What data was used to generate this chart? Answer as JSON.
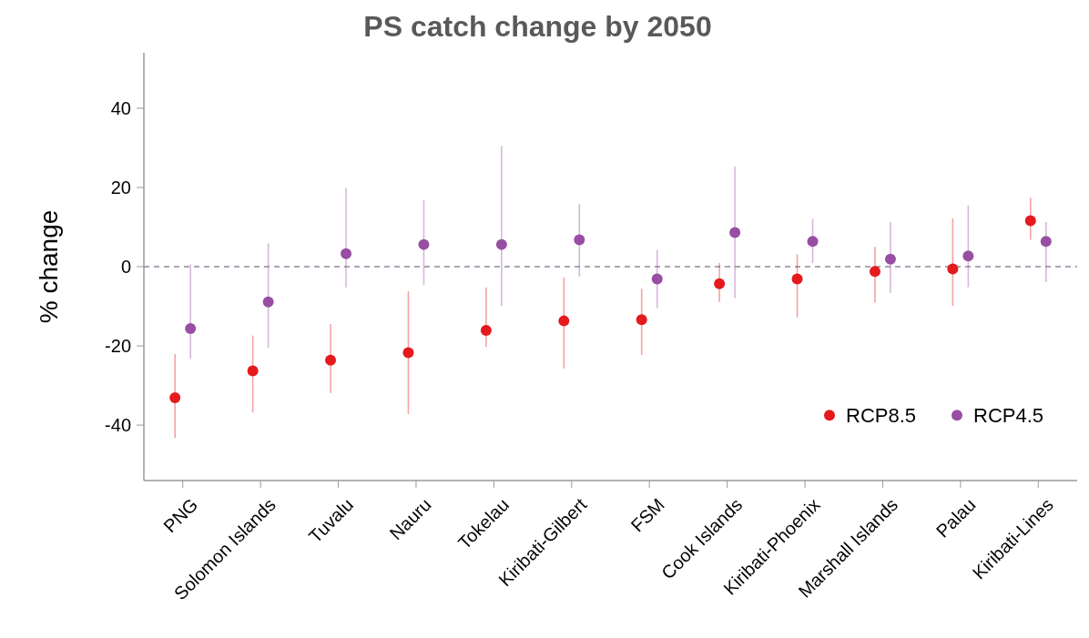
{
  "chart_data": {
    "type": "scatter",
    "title": "PS catch change by 2050",
    "ylabel": "% change",
    "categories": [
      "PNG",
      "Solomon Islands",
      "Tuvalu",
      "Nauru",
      "Tokelau",
      "Kiribati-Gilbert",
      "FSM",
      "Cook Islands",
      "Kiribati-Phoenix",
      "Marshall Islands",
      "Palau",
      "Kiribati-Lines"
    ],
    "series": [
      {
        "name": "RCP8.5",
        "color": "#e41a1c",
        "values": [
          -33.1,
          -26.3,
          -23.6,
          -21.7,
          -16.1,
          -13.7,
          -13.4,
          -4.3,
          -3.1,
          -1.2,
          -0.6,
          11.6
        ],
        "errors": [
          [
            -43.2,
            -22.1
          ],
          [
            -36.8,
            -17.4
          ],
          [
            -31.9,
            -14.5
          ],
          [
            -37.2,
            -6.2
          ],
          [
            -20.3,
            -5.2
          ],
          [
            -25.7,
            -2.7
          ],
          [
            -22.3,
            -5.6
          ],
          [
            -8.9,
            0.9
          ],
          [
            -12.8,
            3.1
          ],
          [
            -9.1,
            5.0
          ],
          [
            -9.9,
            12.2
          ],
          [
            6.8,
            17.4
          ]
        ]
      },
      {
        "name": "RCP4.5",
        "color": "#984ea3",
        "values": [
          -15.6,
          -8.9,
          3.3,
          5.6,
          5.6,
          6.8,
          -3.1,
          8.6,
          6.4,
          1.9,
          2.7,
          6.4
        ],
        "errors": [
          [
            -23.2,
            0.6
          ],
          [
            -20.5,
            5.9
          ],
          [
            -5.2,
            19.9
          ],
          [
            -4.6,
            16.8
          ],
          [
            -9.9,
            30.5
          ],
          [
            -2.5,
            15.9
          ],
          [
            -10.5,
            4.2
          ],
          [
            -7.9,
            25.3
          ],
          [
            0.9,
            12.1
          ],
          [
            -6.6,
            11.2
          ],
          [
            -5.2,
            15.5
          ],
          [
            -3.9,
            11.3
          ]
        ]
      }
    ],
    "ylim": [
      -54,
      54
    ],
    "yticks": [
      -40,
      -20,
      0,
      20,
      40
    ],
    "ref_lines": [
      {
        "axis": "y",
        "value": 0,
        "color": "#8c8c9c",
        "line_style": "dashed"
      }
    ],
    "legend": "bottom right",
    "marker": "circle",
    "grid": false
  }
}
